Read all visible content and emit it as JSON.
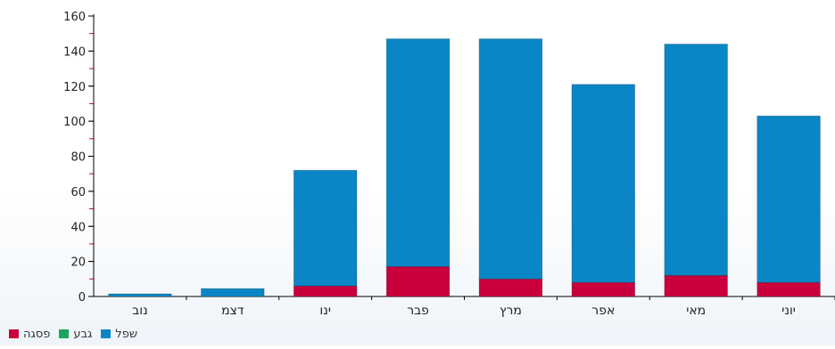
{
  "chart_data": {
    "type": "bar",
    "stacked": true,
    "categories": [
      "נוב",
      "דצמ",
      "ינו",
      "פבר",
      "מרץ",
      "אפר",
      "מאי",
      "יוני"
    ],
    "series": [
      {
        "name": "פסגה",
        "color": "#c8003c",
        "values": [
          0,
          0,
          6,
          17,
          10,
          8,
          12,
          8
        ]
      },
      {
        "name": "גבע",
        "color": "#1aa65a",
        "values": [
          0,
          0,
          0,
          0,
          0,
          0,
          0,
          0
        ]
      },
      {
        "name": "שפל",
        "color": "#0a86c6",
        "values": [
          1.5,
          4.5,
          66,
          130,
          137,
          113,
          132,
          95
        ]
      }
    ],
    "title": "",
    "xlabel": "",
    "ylabel": "",
    "ylim": [
      0,
      160
    ],
    "yticks": [
      0,
      20,
      40,
      60,
      80,
      100,
      120,
      140,
      160
    ],
    "grid": false,
    "legend_position": "bottom-left",
    "legend_order": [
      "פסגה",
      "גבע",
      "שפל"
    ]
  }
}
